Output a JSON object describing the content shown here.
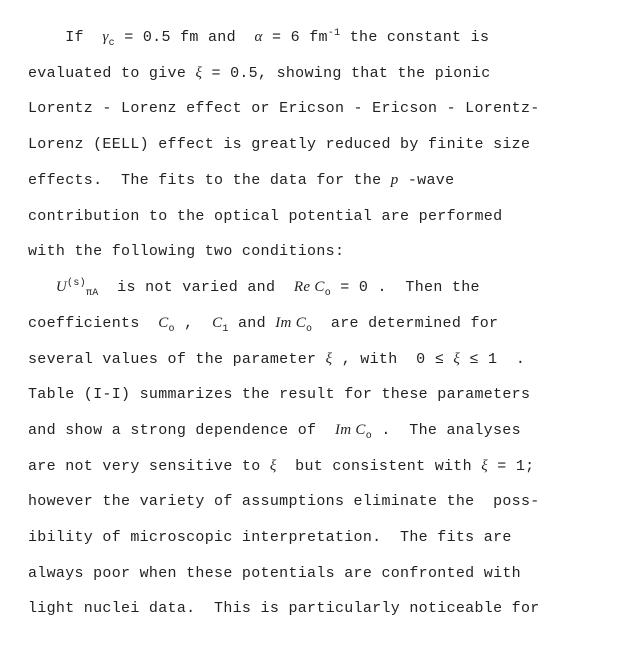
{
  "doc": {
    "fontsize_pt": 11,
    "line_height": 2.38,
    "font_family": "Courier New",
    "text_color": "#222222",
    "background_color": "#ffffff",
    "lines": {
      "l1a": "    If  ",
      "l1_sym1": "γ",
      "l1_sub1": "c",
      "l1b": " = 0.5 fm and  ",
      "l1_sym2": "α",
      "l1c": " = 6 fm",
      "l1_sup": "-1",
      "l1d": " the constant is",
      "l2a": "evaluated to give ",
      "l2_sym": "ξ",
      "l2b": " = 0.5, showing that the pionic",
      "l3": "Lorentz - Lorenz effect or Ericson - Ericson - Lorentz-",
      "l4": "Lorenz (EELL) effect is greatly reduced by finite size",
      "l5a": "effects.  The fits to the data for the ",
      "l5_sym": "p",
      "l5b": " -wave",
      "l6": "contribution to the optical potential are performed",
      "l7": "with the following two conditions:",
      "l8_sym1": "U",
      "l8_sup1": "(s)",
      "l8_sub1": "πA",
      "l8a": "  is not varied and  ",
      "l8_sym2": "Re C",
      "l8_sub2": "o",
      "l8b": " = 0 .  Then the",
      "l9a": "coefficients  ",
      "l9_sym1": "C",
      "l9_sub1": "o",
      "l9b": " ,  ",
      "l9_sym2": "C",
      "l9_sub2": "1",
      "l9c": " and ",
      "l9_sym3": "Im C",
      "l9_sub3": "o",
      "l9d": "  are determined for",
      "l10a": "several values of the parameter ",
      "l10_sym": "ξ",
      "l10b": " , with  0 ≤ ",
      "l10_sym2": "ξ",
      "l10c": " ≤ 1  .",
      "l11": "Table (I-I) summarizes the result for these parameters",
      "l12a": "and show a strong dependence of  ",
      "l12_sym": "Im C",
      "l12_sub": "o",
      "l12b": " .  The analyses",
      "l13a": "are not very sensitive to ",
      "l13_sym": "ξ",
      "l13b": "  but consistent with ",
      "l13_sym2": "ξ",
      "l13c": " = 1;",
      "l14": "however the variety of assumptions eliminate the  poss-",
      "l15": "ibility of microscopic interpretation.  The fits are",
      "l16": "always poor when these potentials are confronted with",
      "l17": "light nuclei data.  This is particularly noticeable for"
    }
  }
}
